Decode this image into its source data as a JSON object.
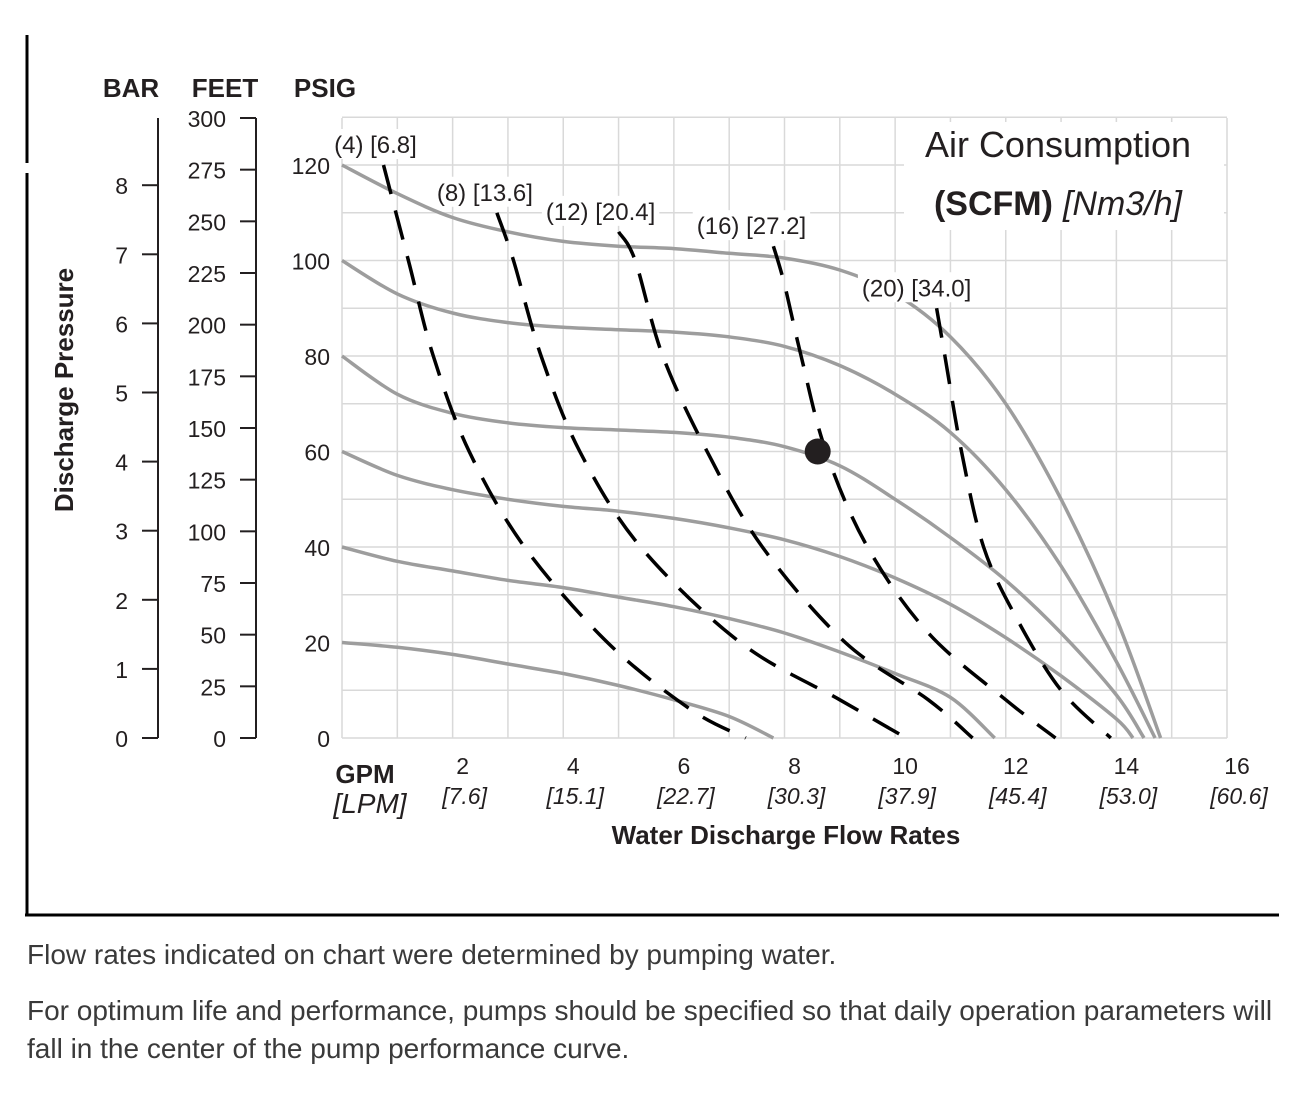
{
  "chart_data": {
    "type": "line",
    "title": "Air Consumption",
    "title_unit_bold": "(SCFM)",
    "title_unit_metric": "[Nm3/h]",
    "y_axis_title": "Discharge Pressure",
    "x_axis_title": "Water Discharge Flow Rates",
    "x_unit": "GPM",
    "x_unit_metric": "[LPM]",
    "xlim": [
      0,
      16
    ],
    "ylim": [
      0,
      130
    ],
    "grid": true,
    "x_ticks": [
      {
        "value": 2,
        "label": "2",
        "metric": "[7.6]"
      },
      {
        "value": 4,
        "label": "4",
        "metric": "[15.1]"
      },
      {
        "value": 6,
        "label": "6",
        "metric": "[22.7]"
      },
      {
        "value": 8,
        "label": "8",
        "metric": "[30.3]"
      },
      {
        "value": 10,
        "label": "10",
        "metric": "[37.9]"
      },
      {
        "value": 12,
        "label": "12",
        "metric": "[45.4]"
      },
      {
        "value": 14,
        "label": "14",
        "metric": "[53.0]"
      },
      {
        "value": 16,
        "label": "16",
        "metric": "[60.6]"
      }
    ],
    "psig_axis": {
      "label": "PSIG",
      "ticks": [
        "0",
        "20",
        "40",
        "60",
        "80",
        "100",
        "120"
      ],
      "values": [
        0,
        20,
        40,
        60,
        80,
        100,
        120
      ]
    },
    "feet_axis": {
      "label": "FEET",
      "ticks": [
        "0",
        "25",
        "50",
        "75",
        "100",
        "125",
        "150",
        "175",
        "200",
        "225",
        "250",
        "275",
        "300"
      ],
      "values": [
        0,
        25,
        50,
        75,
        100,
        125,
        150,
        175,
        200,
        225,
        250,
        275,
        300
      ]
    },
    "bar_axis": {
      "label": "BAR",
      "ticks": [
        "0",
        "1",
        "2",
        "3",
        "4",
        "5",
        "6",
        "7",
        "8"
      ],
      "values": [
        0,
        1,
        2,
        3,
        4,
        5,
        6,
        7,
        8
      ]
    },
    "pressure_curves": [
      {
        "start_psig": 120,
        "points": [
          [
            0,
            120
          ],
          [
            1,
            114
          ],
          [
            2,
            109
          ],
          [
            3,
            106
          ],
          [
            4,
            104
          ],
          [
            5,
            103
          ],
          [
            6,
            102.5
          ],
          [
            7,
            101.5
          ],
          [
            8,
            100.5
          ],
          [
            9,
            98
          ],
          [
            10,
            93
          ],
          [
            11,
            84
          ],
          [
            12,
            70
          ],
          [
            13,
            50
          ],
          [
            14,
            25
          ],
          [
            14.8,
            0
          ]
        ]
      },
      {
        "start_psig": 100,
        "points": [
          [
            0,
            100
          ],
          [
            1,
            93
          ],
          [
            2,
            89
          ],
          [
            3,
            87
          ],
          [
            4,
            86
          ],
          [
            5,
            85.5
          ],
          [
            6,
            85
          ],
          [
            7,
            84
          ],
          [
            8,
            82
          ],
          [
            9,
            78
          ],
          [
            10,
            72
          ],
          [
            11,
            64
          ],
          [
            12,
            52
          ],
          [
            13,
            36
          ],
          [
            14,
            16
          ],
          [
            14.7,
            0
          ]
        ]
      },
      {
        "start_psig": 80,
        "points": [
          [
            0,
            80
          ],
          [
            1,
            72
          ],
          [
            2,
            68
          ],
          [
            3,
            66
          ],
          [
            4,
            65
          ],
          [
            5,
            64.5
          ],
          [
            6,
            64
          ],
          [
            7,
            63
          ],
          [
            8,
            61
          ],
          [
            9,
            57
          ],
          [
            10,
            50
          ],
          [
            11,
            42
          ],
          [
            12,
            33
          ],
          [
            13,
            22
          ],
          [
            14,
            9
          ],
          [
            14.5,
            0
          ]
        ]
      },
      {
        "start_psig": 60,
        "points": [
          [
            0,
            60
          ],
          [
            1,
            55
          ],
          [
            2,
            52
          ],
          [
            3,
            50
          ],
          [
            4,
            48.5
          ],
          [
            5,
            47.5
          ],
          [
            6,
            46
          ],
          [
            7,
            44
          ],
          [
            8,
            41.5
          ],
          [
            9,
            38
          ],
          [
            10,
            33.5
          ],
          [
            11,
            28
          ],
          [
            12,
            21
          ],
          [
            13,
            13
          ],
          [
            14,
            4
          ],
          [
            14.3,
            0
          ]
        ]
      },
      {
        "start_psig": 40,
        "points": [
          [
            0,
            40
          ],
          [
            1,
            37
          ],
          [
            2,
            35
          ],
          [
            3,
            33
          ],
          [
            4,
            31.5
          ],
          [
            5,
            29.5
          ],
          [
            6,
            27.5
          ],
          [
            7,
            25
          ],
          [
            8,
            22
          ],
          [
            9,
            18
          ],
          [
            10,
            13.5
          ],
          [
            11,
            8.5
          ],
          [
            11.8,
            0
          ]
        ]
      },
      {
        "start_psig": 20,
        "points": [
          [
            0,
            20
          ],
          [
            1,
            19
          ],
          [
            2,
            17.5
          ],
          [
            3,
            15.5
          ],
          [
            4,
            13.5
          ],
          [
            5,
            11
          ],
          [
            6,
            8
          ],
          [
            7,
            4.5
          ],
          [
            7.8,
            0
          ]
        ]
      }
    ],
    "air_curves": [
      {
        "name": "(4) [6.8]",
        "points": [
          [
            0.75,
            120
          ],
          [
            1.2,
            100
          ],
          [
            1.65,
            80
          ],
          [
            2.3,
            60
          ],
          [
            3.3,
            40
          ],
          [
            4.8,
            20
          ],
          [
            6.3,
            6
          ],
          [
            7.3,
            0
          ]
        ]
      },
      {
        "name": "(8) [13.6]",
        "points": [
          [
            2.8,
            110
          ],
          [
            3.1,
            100
          ],
          [
            3.6,
            80
          ],
          [
            4.3,
            60
          ],
          [
            5.4,
            40
          ],
          [
            7.2,
            20
          ],
          [
            9.0,
            8
          ],
          [
            10.2,
            0
          ]
        ]
      },
      {
        "name": "(12) [20.4]",
        "points": [
          [
            5.0,
            106
          ],
          [
            5.3,
            100
          ],
          [
            5.8,
            80
          ],
          [
            6.6,
            60
          ],
          [
            7.6,
            40
          ],
          [
            9.1,
            20
          ],
          [
            10.6,
            8
          ],
          [
            11.4,
            0
          ]
        ]
      },
      {
        "name": "(16) [27.2]",
        "points": [
          [
            7.8,
            103
          ],
          [
            8.0,
            95
          ],
          [
            8.3,
            80
          ],
          [
            8.75,
            60
          ],
          [
            9.5,
            40
          ],
          [
            10.6,
            22
          ],
          [
            12.0,
            8
          ],
          [
            12.9,
            0
          ]
        ]
      },
      {
        "name": "(20) [34.0]",
        "points": [
          [
            10.75,
            90
          ],
          [
            10.9,
            80
          ],
          [
            11.2,
            60
          ],
          [
            11.6,
            40
          ],
          [
            12.2,
            25
          ],
          [
            13.0,
            10
          ],
          [
            13.9,
            0
          ]
        ]
      }
    ],
    "marker": {
      "x": 8.6,
      "y": 60
    }
  },
  "notes": {
    "line1": "Flow rates indicated on chart were determined by pumping water.",
    "line2": "For optimum life and performance, pumps should be specified so that daily operation parameters will fall in the center of the pump performance curve."
  },
  "colors": {
    "grid": "#d9d9d9",
    "pressure_curve": "#9d9d9d",
    "air_curve": "#000000",
    "text": "#231f20",
    "note_text": "#3a3a3a"
  }
}
